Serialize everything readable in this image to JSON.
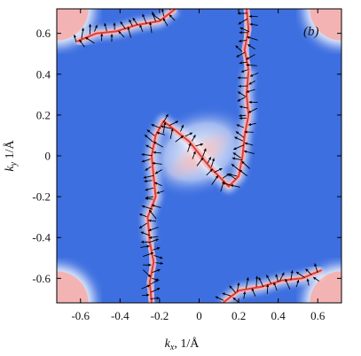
{
  "chart_data": {
    "type": "heatmap",
    "title": "",
    "panel_label": "(b)",
    "xlabel": "k_x, 1/Å",
    "ylabel": "k_y, 1/Å",
    "xlabel_main": "k",
    "xlabel_sub": "x",
    "xlabel_unit": ", 1/Å",
    "ylabel_main": "k",
    "ylabel_sub": "y",
    "ylabel_unit": " 1/Å",
    "xlim": [
      -0.72,
      0.72
    ],
    "ylim": [
      -0.72,
      0.72
    ],
    "x_ticks": [
      -0.6,
      -0.4,
      -0.2,
      0,
      0.2,
      0.4,
      0.6
    ],
    "x_tick_labels": [
      "-0.6",
      "-0.4",
      "-0.2",
      "0",
      "0.2",
      "0.4",
      "0.6"
    ],
    "y_ticks": [
      -0.6,
      -0.4,
      -0.2,
      0,
      0.2,
      0.4,
      0.6
    ],
    "y_tick_labels": [
      "-0.6",
      "-0.4",
      "-0.2",
      "0",
      "0.2",
      "0.4",
      "0.6"
    ],
    "grid": false,
    "colors": {
      "background": "#3e6fe0",
      "light": "#ffffff",
      "high": "#f4b3b3",
      "contour": "#e23b3b",
      "arrows": "#000000"
    },
    "corner_pockets": [
      {
        "center": [
          -0.72,
          0.72
        ],
        "radius": 0.16
      },
      {
        "center": [
          0.72,
          0.72
        ],
        "radius": 0.16
      },
      {
        "center": [
          -0.72,
          -0.72
        ],
        "radius": 0.16
      },
      {
        "center": [
          0.72,
          -0.72
        ],
        "radius": 0.16
      }
    ],
    "contours": [
      {
        "name": "central",
        "points": [
          [
            -0.25,
            -0.42
          ],
          [
            -0.26,
            -0.3
          ],
          [
            -0.22,
            -0.2
          ],
          [
            -0.23,
            -0.1
          ],
          [
            -0.24,
            0.0
          ],
          [
            -0.22,
            0.1
          ],
          [
            -0.18,
            0.17
          ],
          [
            -0.05,
            0.07
          ],
          [
            0.05,
            -0.05
          ],
          [
            0.15,
            -0.15
          ],
          [
            0.2,
            -0.1
          ],
          [
            0.22,
            0.0
          ],
          [
            0.23,
            0.1
          ],
          [
            0.25,
            0.2
          ],
          [
            0.24,
            0.3
          ],
          [
            0.25,
            0.42
          ]
        ]
      },
      {
        "name": "upper",
        "points": [
          [
            0.25,
            0.42
          ],
          [
            0.23,
            0.52
          ],
          [
            0.25,
            0.62
          ],
          [
            0.24,
            0.72
          ]
        ]
      },
      {
        "name": "lower",
        "points": [
          [
            -0.25,
            -0.42
          ],
          [
            -0.23,
            -0.52
          ],
          [
            -0.25,
            -0.62
          ],
          [
            -0.24,
            -0.72
          ]
        ]
      },
      {
        "name": "top-left",
        "points": [
          [
            -0.62,
            0.56
          ],
          [
            -0.52,
            0.6
          ],
          [
            -0.42,
            0.61
          ],
          [
            -0.32,
            0.64
          ],
          [
            -0.2,
            0.66
          ],
          [
            -0.12,
            0.72
          ]
        ]
      },
      {
        "name": "bottom-right",
        "points": [
          [
            0.12,
            -0.72
          ],
          [
            0.2,
            -0.66
          ],
          [
            0.32,
            -0.64
          ],
          [
            0.42,
            -0.61
          ],
          [
            0.52,
            -0.6
          ],
          [
            0.62,
            -0.56
          ]
        ]
      }
    ]
  }
}
